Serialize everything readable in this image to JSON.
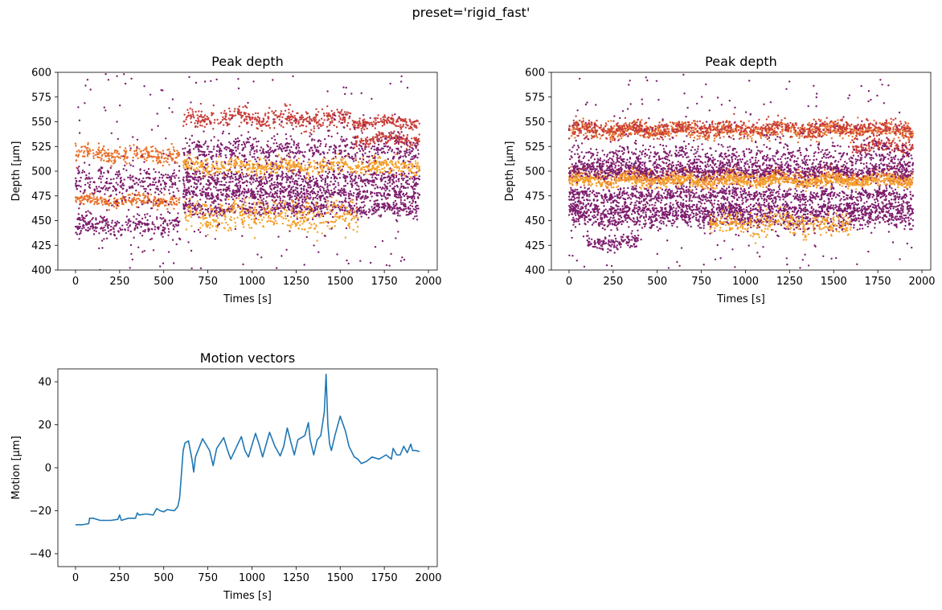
{
  "figure": {
    "suptitle": "preset='rigid_fast'"
  },
  "chart_data": [
    {
      "type": "scatter",
      "title": "Peak depth",
      "xlabel": "Times [s]",
      "ylabel": "Depth [μm]",
      "xlim": [
        -100,
        2050
      ],
      "ylim": [
        400,
        600
      ],
      "xticks": [
        "0",
        "250",
        "500",
        "750",
        "1000",
        "1250",
        "1500",
        "1750",
        "2000"
      ],
      "yticks": [
        "400",
        "425",
        "450",
        "475",
        "500",
        "525",
        "550",
        "575",
        "600"
      ],
      "grid": false,
      "x_range": [
        0,
        1950
      ],
      "series": [
        {
          "color": "#e8702a",
          "bands": [
            {
              "x": [
                0,
                590
              ],
              "y": 517,
              "spread": 4
            },
            {
              "x": [
                0,
                590
              ],
              "y": 470,
              "spread": 3
            }
          ]
        },
        {
          "color": "#c73e3a",
          "bands": [
            {
              "x": [
                610,
                1560
              ],
              "y": 553,
              "spread": 5
            },
            {
              "x": [
                1570,
                1950
              ],
              "y": 549,
              "spread": 3
            },
            {
              "x": [
                1570,
                1950
              ],
              "y": 532,
              "spread": 3
            }
          ]
        },
        {
          "color": "#7d1d6d",
          "bands": [
            {
              "x": [
                0,
                590
              ],
              "y": 488,
              "spread": 8
            },
            {
              "x": [
                0,
                590
              ],
              "y": 445,
              "spread": 6
            },
            {
              "x": [
                610,
                1950
              ],
              "y": 520,
              "spread": 8
            },
            {
              "x": [
                610,
                1950
              ],
              "y": 492,
              "spread": 5
            },
            {
              "x": [
                610,
                1950
              ],
              "y": 477,
              "spread": 4
            },
            {
              "x": [
                610,
                1950
              ],
              "y": 462,
              "spread": 4
            }
          ]
        },
        {
          "color": "#f4a02a",
          "bands": [
            {
              "x": [
                610,
                1950
              ],
              "y": 505,
              "spread": 4
            },
            {
              "x": [
                610,
                1600
              ],
              "y": 455,
              "spread": 8
            }
          ]
        }
      ]
    },
    {
      "type": "scatter",
      "title": "Peak depth",
      "xlabel": "Times [s]",
      "ylabel": "Depth [μm]",
      "xlim": [
        -100,
        2050
      ],
      "ylim": [
        400,
        600
      ],
      "xticks": [
        "0",
        "250",
        "500",
        "750",
        "1000",
        "1250",
        "1500",
        "1750",
        "2000"
      ],
      "yticks": [
        "400",
        "425",
        "450",
        "475",
        "500",
        "525",
        "550",
        "575",
        "600"
      ],
      "grid": false,
      "x_range": [
        0,
        1950
      ],
      "series": [
        {
          "color": "#e8702a",
          "bands": [
            {
              "x": [
                0,
                1950
              ],
              "y": 541,
              "spread": 4
            },
            {
              "x": [
                0,
                1950
              ],
              "y": 494,
              "spread": 4
            }
          ]
        },
        {
          "color": "#c73e3a",
          "bands": [
            {
              "x": [
                0,
                1950
              ],
              "y": 543,
              "spread": 4
            },
            {
              "x": [
                1600,
                1950
              ],
              "y": 525,
              "spread": 3
            }
          ]
        },
        {
          "color": "#7d1d6d",
          "bands": [
            {
              "x": [
                0,
                1950
              ],
              "y": 512,
              "spread": 8
            },
            {
              "x": [
                0,
                1950
              ],
              "y": 500,
              "spread": 4
            },
            {
              "x": [
                0,
                1950
              ],
              "y": 476,
              "spread": 4
            },
            {
              "x": [
                0,
                1950
              ],
              "y": 462,
              "spread": 4
            },
            {
              "x": [
                0,
                1950
              ],
              "y": 452,
              "spread": 5
            },
            {
              "x": [
                100,
                400
              ],
              "y": 428,
              "spread": 4
            }
          ]
        },
        {
          "color": "#f4a02a",
          "bands": [
            {
              "x": [
                0,
                1950
              ],
              "y": 490,
              "spread": 3
            },
            {
              "x": [
                800,
                1600
              ],
              "y": 447,
              "spread": 6
            }
          ]
        }
      ]
    },
    {
      "type": "line",
      "title": "Motion vectors",
      "xlabel": "Times [s]",
      "ylabel": "Motion [μm]",
      "xlim": [
        -100,
        2050
      ],
      "ylim": [
        -46,
        46
      ],
      "xticks": [
        "0",
        "250",
        "500",
        "750",
        "1000",
        "1250",
        "1500",
        "1750",
        "2000"
      ],
      "yticks": [
        "−40",
        "−20",
        "0",
        "20",
        "40"
      ],
      "ytick_values": [
        -40,
        -20,
        0,
        20,
        40
      ],
      "xtick_values": [
        0,
        250,
        500,
        750,
        1000,
        1250,
        1500,
        1750,
        2000
      ],
      "grid": false,
      "color": "#1f77b4",
      "x": [
        0,
        40,
        75,
        80,
        100,
        140,
        200,
        240,
        250,
        260,
        300,
        340,
        350,
        360,
        400,
        440,
        460,
        480,
        500,
        520,
        560,
        580,
        590,
        600,
        610,
        620,
        640,
        660,
        670,
        680,
        720,
        760,
        780,
        800,
        840,
        860,
        880,
        940,
        960,
        980,
        1020,
        1040,
        1060,
        1100,
        1130,
        1160,
        1180,
        1200,
        1220,
        1240,
        1260,
        1300,
        1320,
        1330,
        1350,
        1370,
        1390,
        1410,
        1420,
        1430,
        1440,
        1450,
        1470,
        1500,
        1530,
        1550,
        1580,
        1600,
        1620,
        1650,
        1680,
        1720,
        1760,
        1790,
        1800,
        1820,
        1840,
        1860,
        1880,
        1900,
        1910,
        1930,
        1950
      ],
      "values": [
        -26.5,
        -26.5,
        -26,
        -23.5,
        -23.5,
        -24.5,
        -24.5,
        -24,
        -22,
        -24.5,
        -23.5,
        -23.5,
        -21,
        -22,
        -21.5,
        -22,
        -19,
        -20,
        -20.5,
        -19.5,
        -20,
        -18,
        -14,
        -3,
        8,
        11.5,
        12.5,
        4,
        -2,
        5,
        13.5,
        8,
        1,
        9,
        14,
        8.5,
        4,
        14.5,
        8,
        5,
        16,
        11,
        5,
        16.5,
        10,
        5.5,
        10,
        18.5,
        12,
        6,
        13,
        15,
        21,
        13,
        6,
        13,
        15,
        26,
        43.5,
        20,
        11,
        8,
        15,
        24,
        17,
        10,
        5,
        4,
        2,
        3,
        5,
        4,
        6,
        4,
        9,
        6,
        6,
        10,
        7,
        11,
        8,
        8,
        7.5
      ]
    }
  ]
}
